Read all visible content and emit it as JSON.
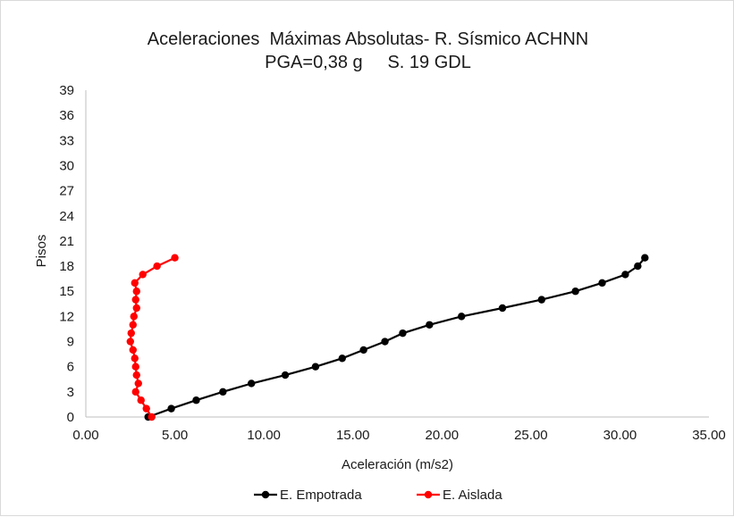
{
  "chart_data": {
    "type": "line",
    "title_line1": "Aceleraciones  Máximas Absolutas- R. Sísmico ACHNN",
    "title_line2": "PGA=0,38 g     S. 19 GDL",
    "xlabel": "Aceleración (m/s2)",
    "ylabel": "Pisos",
    "xlim": [
      0,
      35
    ],
    "ylim": [
      0,
      39
    ],
    "x_ticks": [
      "0.00",
      "5.00",
      "10.00",
      "15.00",
      "20.00",
      "25.00",
      "30.00",
      "35.00"
    ],
    "y_ticks": [
      "0",
      "3",
      "6",
      "9",
      "12",
      "15",
      "18",
      "21",
      "24",
      "27",
      "30",
      "33",
      "36",
      "39"
    ],
    "grid": false,
    "legend_position": "bottom",
    "series": [
      {
        "name": "E. Empotrada",
        "color": "#000000",
        "points": [
          {
            "x": 3.5,
            "y": 0
          },
          {
            "x": 4.8,
            "y": 1
          },
          {
            "x": 6.2,
            "y": 2
          },
          {
            "x": 7.7,
            "y": 3
          },
          {
            "x": 9.3,
            "y": 4
          },
          {
            "x": 11.2,
            "y": 5
          },
          {
            "x": 12.9,
            "y": 6
          },
          {
            "x": 14.4,
            "y": 7
          },
          {
            "x": 15.6,
            "y": 8
          },
          {
            "x": 16.8,
            "y": 9
          },
          {
            "x": 17.8,
            "y": 10
          },
          {
            "x": 19.3,
            "y": 11
          },
          {
            "x": 21.1,
            "y": 12
          },
          {
            "x": 23.4,
            "y": 13
          },
          {
            "x": 25.6,
            "y": 14
          },
          {
            "x": 27.5,
            "y": 15
          },
          {
            "x": 29.0,
            "y": 16
          },
          {
            "x": 30.3,
            "y": 17
          },
          {
            "x": 31.0,
            "y": 18
          },
          {
            "x": 31.4,
            "y": 19
          }
        ]
      },
      {
        "name": "E. Aislada",
        "color": "#ff0000",
        "points": [
          {
            "x": 3.7,
            "y": 0
          },
          {
            "x": 3.4,
            "y": 1
          },
          {
            "x": 3.1,
            "y": 2
          },
          {
            "x": 2.8,
            "y": 3
          },
          {
            "x": 2.95,
            "y": 4
          },
          {
            "x": 2.85,
            "y": 5
          },
          {
            "x": 2.8,
            "y": 6
          },
          {
            "x": 2.75,
            "y": 7
          },
          {
            "x": 2.65,
            "y": 8
          },
          {
            "x": 2.5,
            "y": 9
          },
          {
            "x": 2.55,
            "y": 10
          },
          {
            "x": 2.65,
            "y": 11
          },
          {
            "x": 2.7,
            "y": 12
          },
          {
            "x": 2.85,
            "y": 13
          },
          {
            "x": 2.8,
            "y": 14
          },
          {
            "x": 2.85,
            "y": 15
          },
          {
            "x": 2.75,
            "y": 16
          },
          {
            "x": 3.2,
            "y": 17
          },
          {
            "x": 4.0,
            "y": 18
          },
          {
            "x": 5.0,
            "y": 19
          }
        ]
      }
    ]
  }
}
